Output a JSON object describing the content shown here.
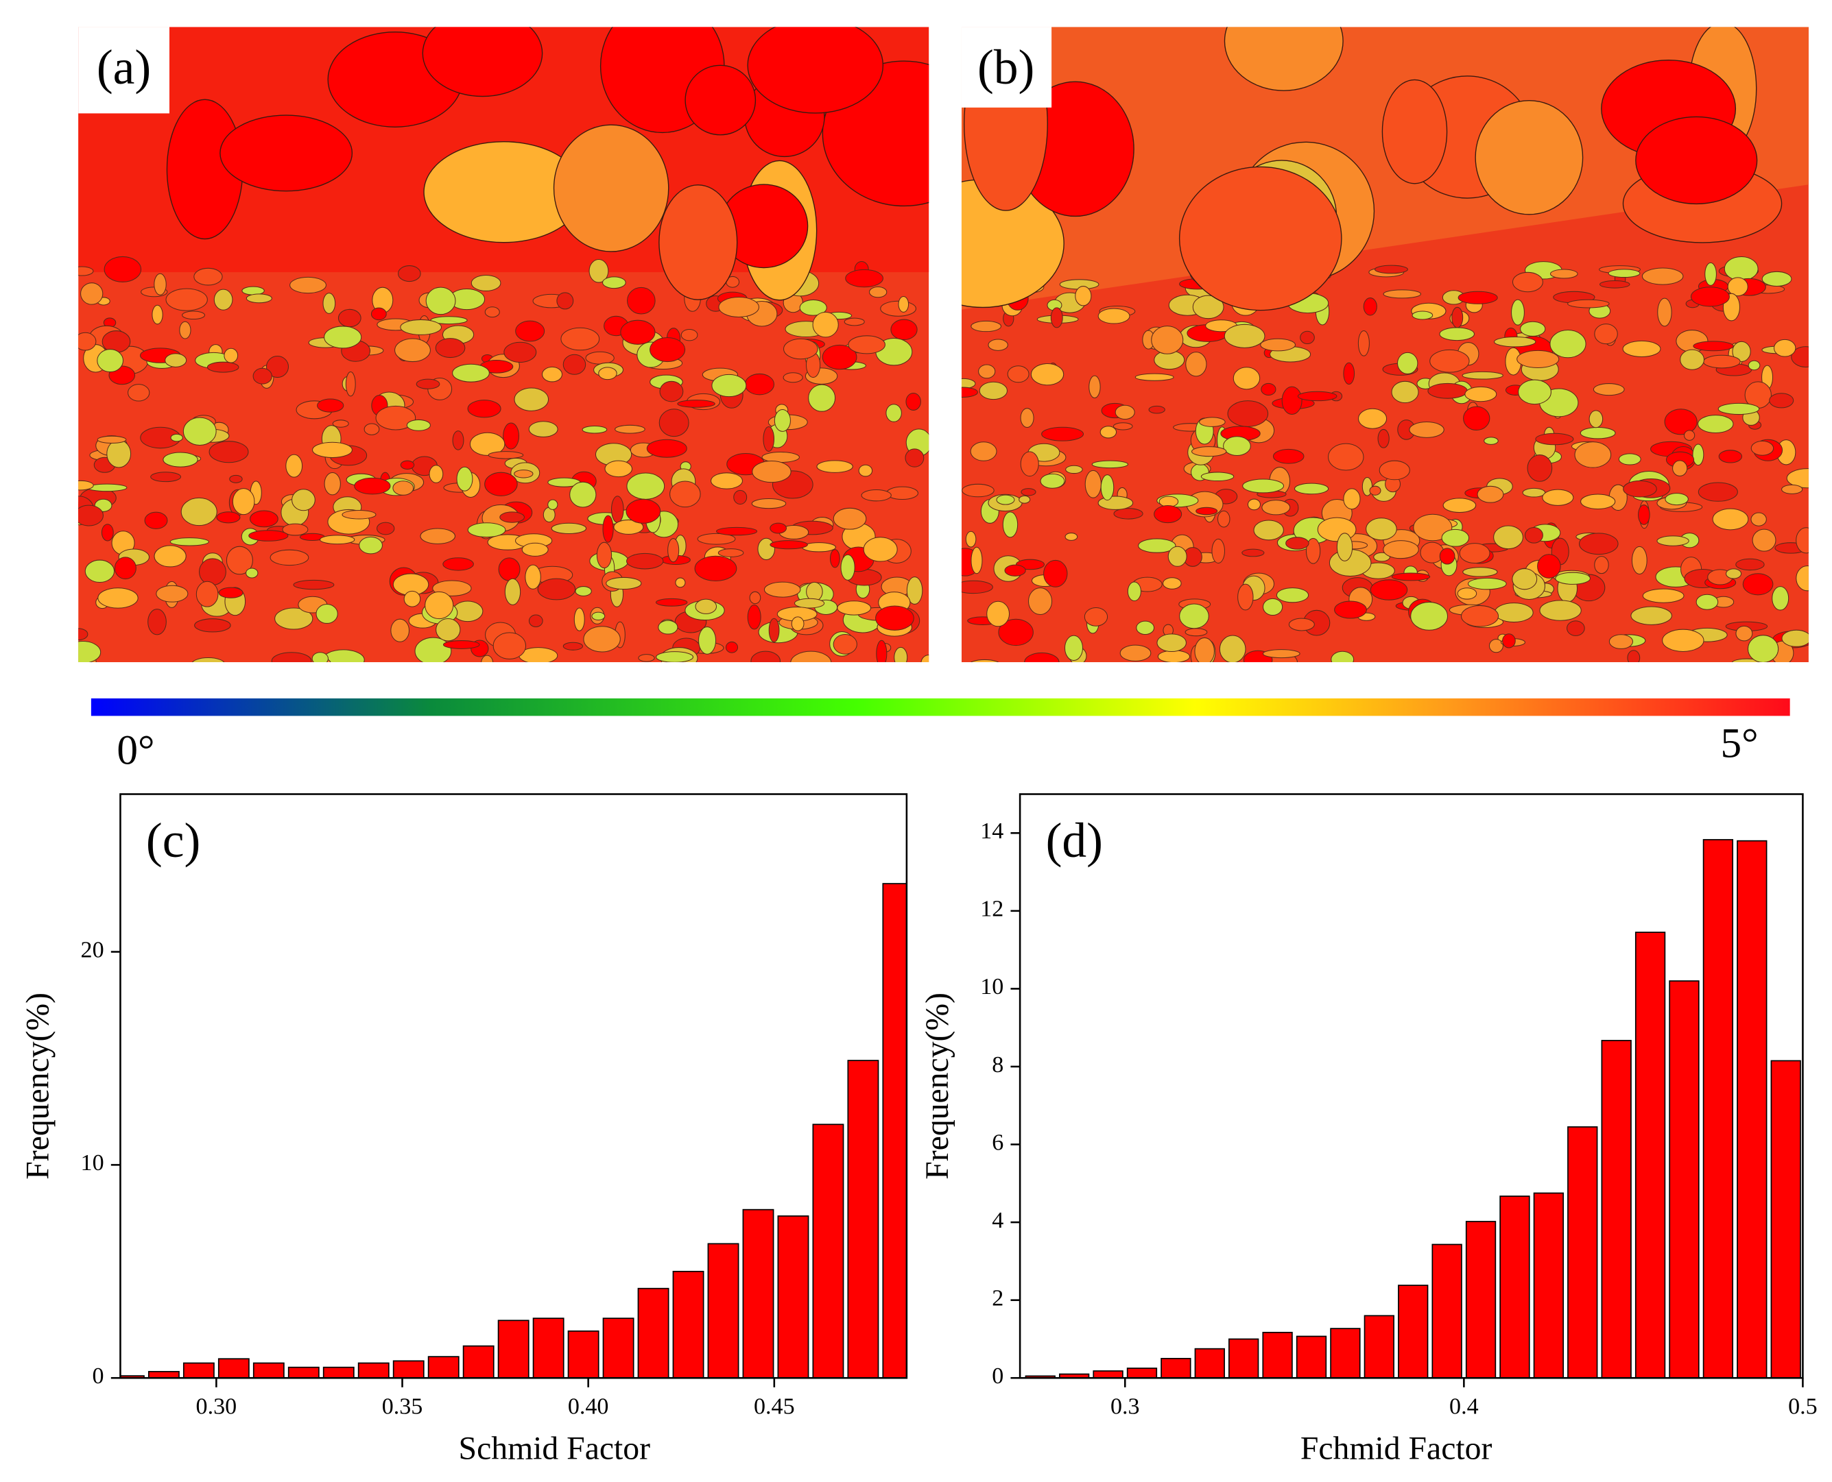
{
  "panels": {
    "a": "(a)",
    "b": "(b)"
  },
  "colorbar": {
    "min_label": "0°",
    "max_label": "5°"
  },
  "chart_data": [
    {
      "type": "histogram",
      "annotation": "(c)",
      "xlabel": "Schmid Factor",
      "ylabel": "Frequency(%)",
      "color": "#ff0000",
      "bins": [
        0.2718,
        0.2812,
        0.2906,
        0.3,
        0.3094,
        0.3188,
        0.3282,
        0.3376,
        0.347,
        0.3564,
        0.3658,
        0.3752,
        0.3846,
        0.394,
        0.4034,
        0.4128,
        0.4222,
        0.4316,
        0.441,
        0.4504,
        0.4598,
        0.4692,
        0.4786,
        0.488
      ],
      "values": [
        0.1,
        0.3,
        0.7,
        0.9,
        0.7,
        0.5,
        0.5,
        0.7,
        0.8,
        1.0,
        1.5,
        2.7,
        2.8,
        2.2,
        2.8,
        4.2,
        5.0,
        6.3,
        7.9,
        7.6,
        11.9,
        14.9,
        23.2
      ],
      "xlim": [
        0.2742,
        0.4856
      ],
      "ylim": [
        0,
        27.4
      ],
      "xticks": [
        {
          "value": 0.3,
          "label": "0.30"
        },
        {
          "value": 0.35,
          "label": "0.35"
        },
        {
          "value": 0.4,
          "label": "0.40"
        },
        {
          "value": 0.45,
          "label": "0.45"
        }
      ],
      "yticks": [
        0,
        10,
        20
      ]
    },
    {
      "type": "histogram",
      "annotation": "(d)",
      "xlabel": "Fchmid Factor",
      "ylabel": "Frequency(%)",
      "color": "#ff0000",
      "bins": [
        0.27,
        0.28,
        0.29,
        0.3,
        0.31,
        0.32,
        0.33,
        0.34,
        0.35,
        0.36,
        0.37,
        0.38,
        0.39,
        0.4,
        0.41,
        0.42,
        0.43,
        0.44,
        0.45,
        0.46,
        0.47,
        0.48,
        0.49,
        0.5
      ],
      "values": [
        0.05,
        0.1,
        0.18,
        0.25,
        0.5,
        0.75,
        1.0,
        1.17,
        1.07,
        1.27,
        1.6,
        2.38,
        3.43,
        4.02,
        4.67,
        4.75,
        6.45,
        8.67,
        11.45,
        10.2,
        13.83,
        13.8,
        8.15
      ],
      "xlim": [
        0.269,
        0.5
      ],
      "ylim": [
        0,
        15
      ],
      "xticks": [
        0.3,
        0.4,
        0.5
      ],
      "yticks": [
        0,
        2,
        4,
        6,
        8,
        10,
        12,
        14
      ]
    }
  ]
}
